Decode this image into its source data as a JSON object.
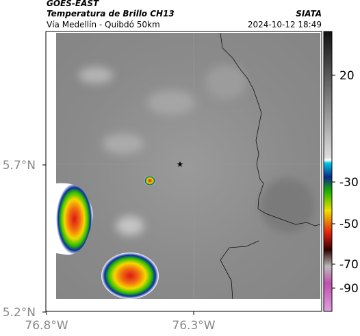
{
  "header": {
    "title": "GOES-EAST",
    "subtitle": "Temperatura de Brillo CH13",
    "route": "Vía Medellín - Quibdó 50km",
    "source": "SIATA",
    "timestamp": "2024-10-12 18:49"
  },
  "map": {
    "lat_labels": [
      "5.7°N",
      "5.2°N"
    ],
    "lon_labels": [
      "76.8°W",
      "76.3°W"
    ]
  },
  "colorbar": {
    "tick_labels": [
      20,
      -30,
      -50,
      -70,
      -90
    ]
  }
}
